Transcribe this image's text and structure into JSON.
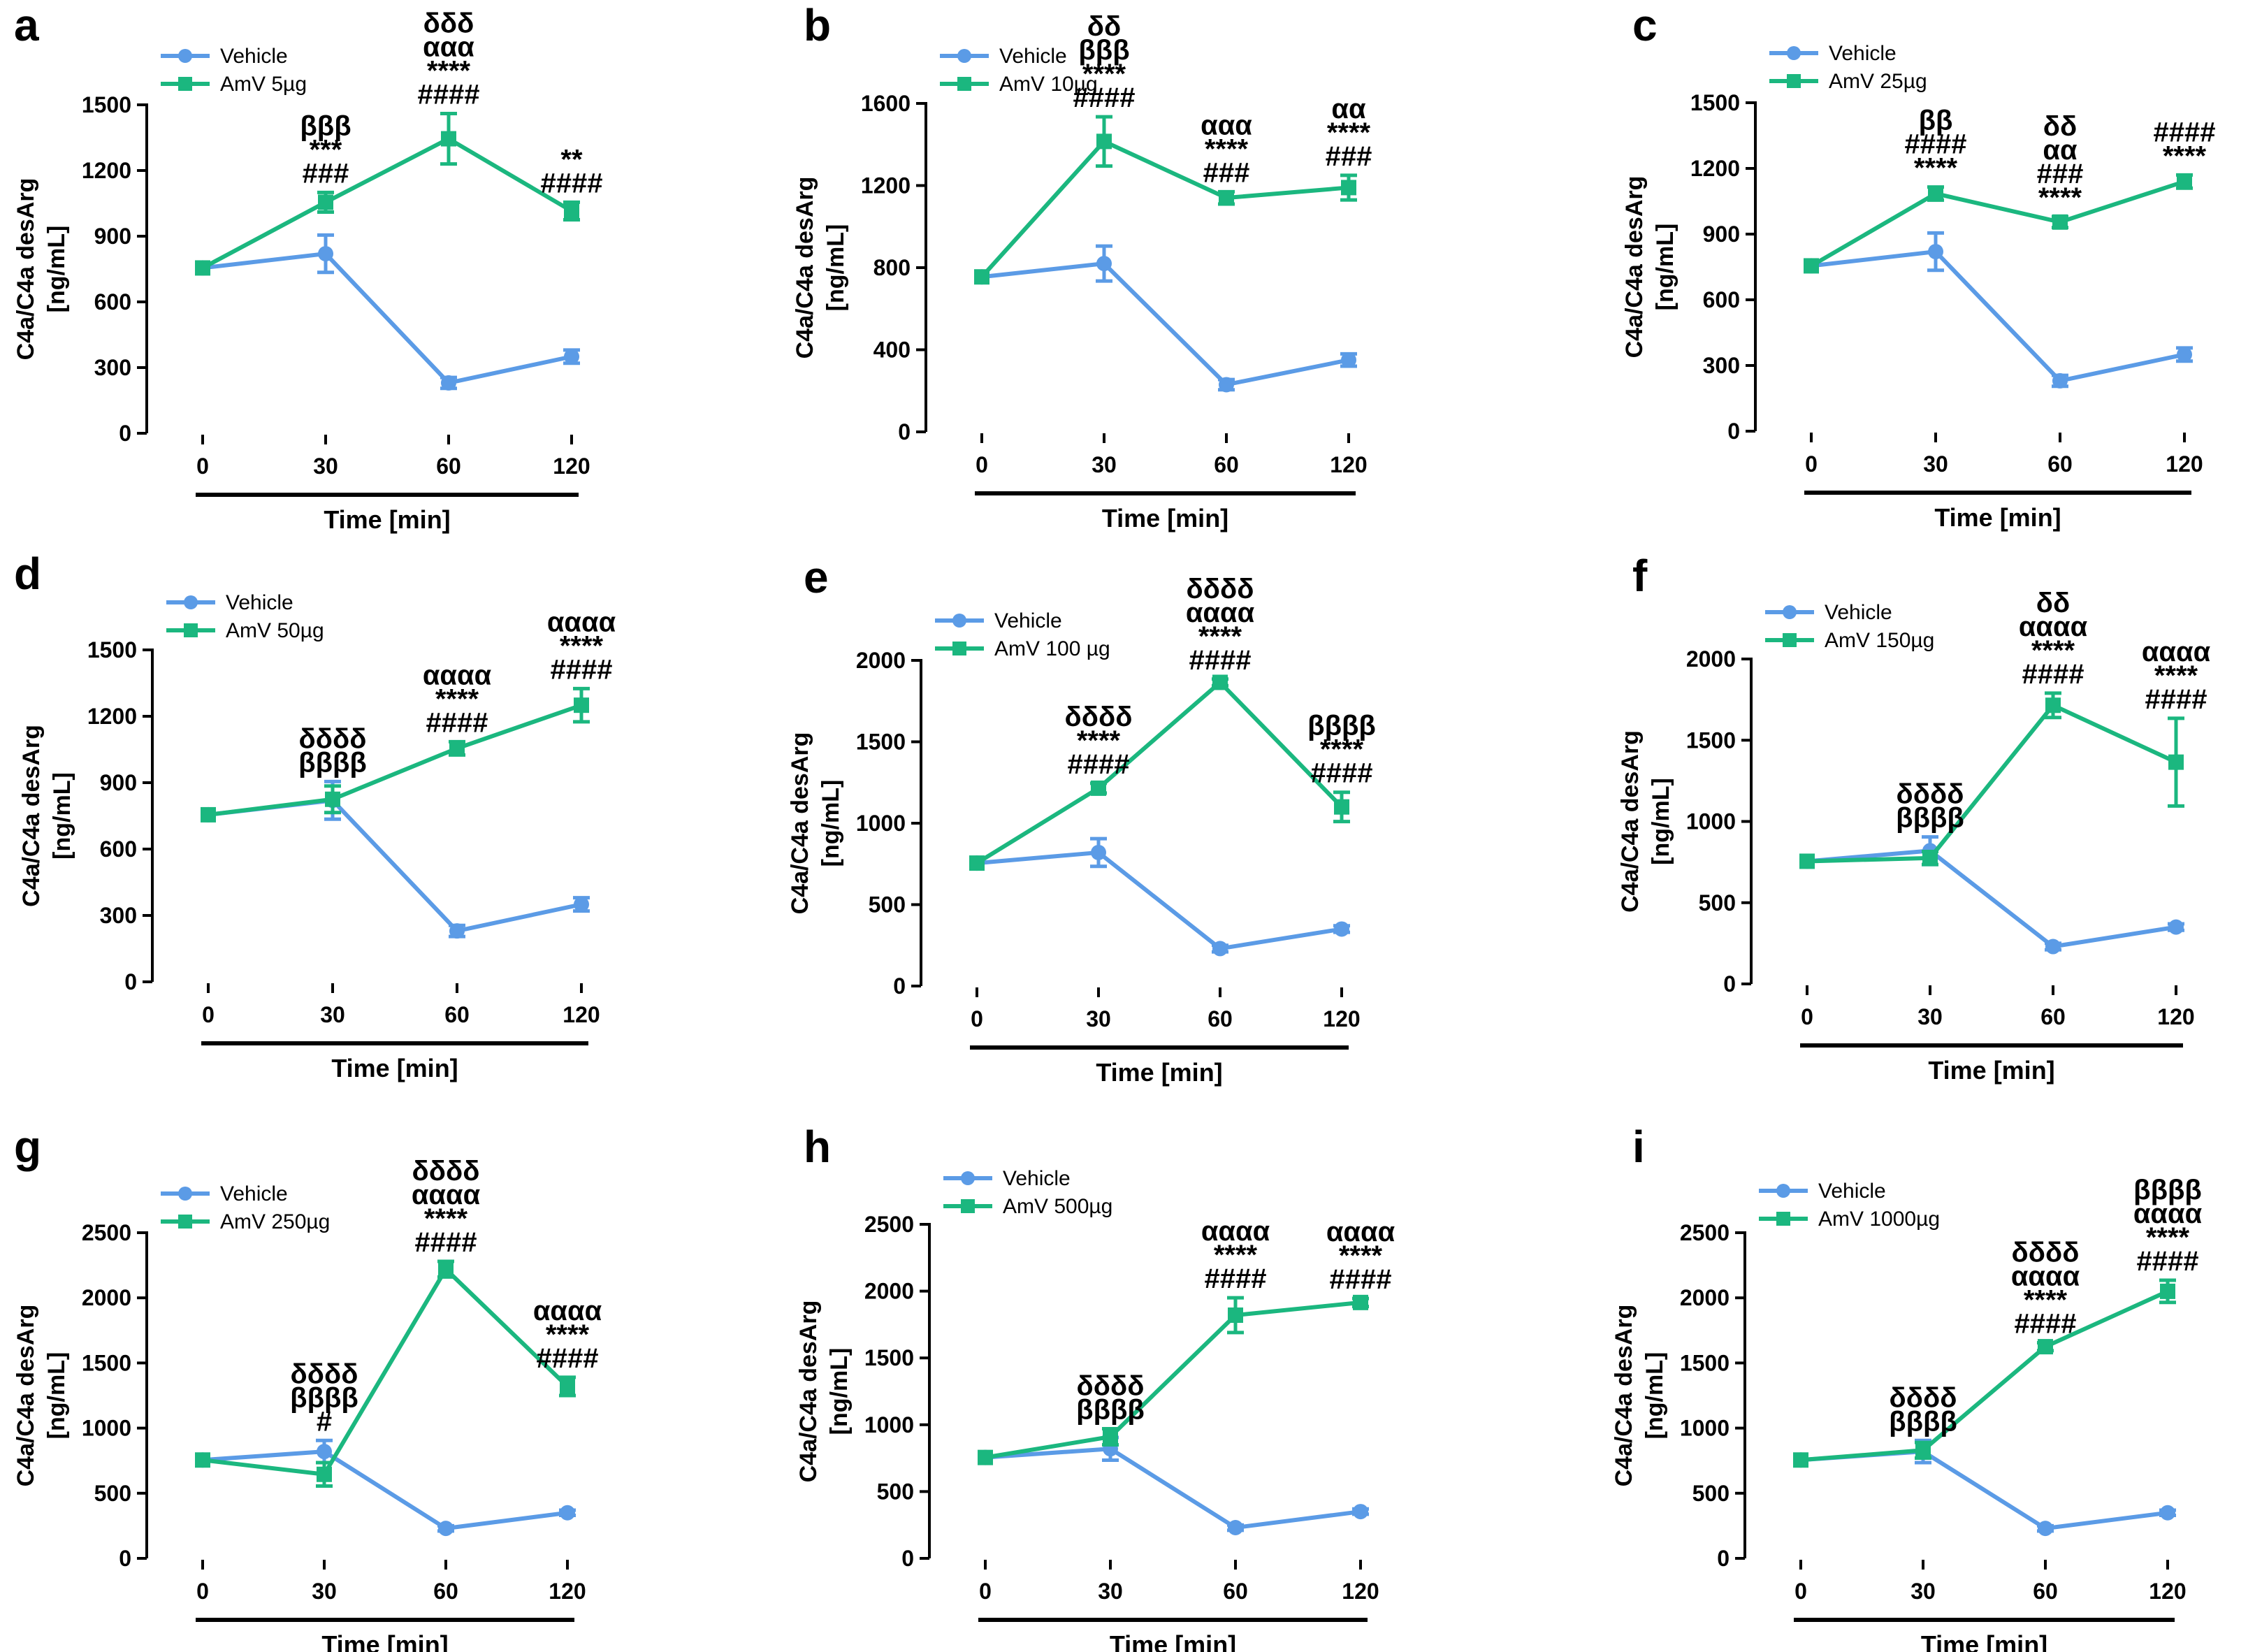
{
  "colors": {
    "vehicle": "#5B9BE6",
    "amv": "#1BB77F",
    "axis": "#000000"
  },
  "chart_data": [
    {
      "type": "line",
      "panel": "a",
      "xlabel": "Time [min]",
      "ylabel": [
        "C4a/C4a desArg",
        "[ng/mL]"
      ],
      "ylim": [
        0,
        1500
      ],
      "yticks": [
        0,
        300,
        600,
        900,
        1200,
        1500
      ],
      "x": [
        0,
        30,
        60,
        120
      ],
      "x_labels": [
        "0",
        "30",
        "60",
        "120"
      ],
      "series": [
        {
          "name": "Vehicle",
          "values": [
            755,
            820,
            230,
            350
          ],
          "err": [
            0,
            85,
            25,
            30
          ]
        },
        {
          "name": "AmV 5µg",
          "values": [
            755,
            1055,
            1345,
            1015
          ],
          "err": [
            0,
            45,
            115,
            40
          ]
        }
      ],
      "annotations": [
        {
          "x": 30,
          "lines": [
            "βββ",
            "***",
            "###"
          ]
        },
        {
          "x": 60,
          "lines": [
            "δδδ",
            "ααα",
            "****",
            "####"
          ]
        },
        {
          "x": 120,
          "lines": [
            "**",
            "####"
          ]
        }
      ]
    },
    {
      "type": "line",
      "panel": "b",
      "xlabel": "Time [min]",
      "ylabel": [
        "C4a/C4a desArg",
        "[ng/mL]"
      ],
      "ylim": [
        0,
        1600
      ],
      "yticks": [
        0,
        400,
        800,
        1200,
        1600
      ],
      "x": [
        0,
        30,
        60,
        120
      ],
      "x_labels": [
        "0",
        "30",
        "60",
        "120"
      ],
      "series": [
        {
          "name": "Vehicle",
          "values": [
            755,
            820,
            230,
            350
          ],
          "err": [
            0,
            85,
            25,
            30
          ]
        },
        {
          "name": "AmV 10µg",
          "values": [
            755,
            1415,
            1140,
            1190
          ],
          "err": [
            0,
            120,
            30,
            60
          ]
        }
      ],
      "annotations": [
        {
          "x": 30,
          "lines": [
            "δδ",
            "βββ",
            "****",
            "####"
          ]
        },
        {
          "x": 60,
          "lines": [
            "ααα",
            "****",
            "###"
          ]
        },
        {
          "x": 120,
          "lines": [
            "αα",
            "****",
            "###"
          ]
        }
      ]
    },
    {
      "type": "line",
      "panel": "c",
      "xlabel": "Time [min]",
      "ylabel": [
        "C4a/C4a desArg",
        "[ng/mL]"
      ],
      "ylim": [
        0,
        1500
      ],
      "yticks": [
        0,
        300,
        600,
        900,
        1200,
        1500
      ],
      "x": [
        0,
        30,
        60,
        120
      ],
      "x_labels": [
        "0",
        "30",
        "60",
        "120"
      ],
      "series": [
        {
          "name": "Vehicle",
          "values": [
            755,
            820,
            230,
            350
          ],
          "err": [
            0,
            85,
            25,
            30
          ]
        },
        {
          "name": "AmV 25µg",
          "values": [
            755,
            1085,
            955,
            1140
          ],
          "err": [
            0,
            30,
            25,
            30
          ]
        }
      ],
      "annotations": [
        {
          "x": 30,
          "lines": [
            "ββ",
            "####",
            "****"
          ]
        },
        {
          "x": 60,
          "lines": [
            "δδ",
            "αα",
            "###",
            "****"
          ]
        },
        {
          "x": 120,
          "lines": [
            "####",
            "****"
          ]
        }
      ]
    },
    {
      "type": "line",
      "panel": "d",
      "xlabel": "Time [min]",
      "ylabel": [
        "C4a/C4a desArg",
        "[ng/mL]"
      ],
      "ylim": [
        0,
        1500
      ],
      "yticks": [
        0,
        300,
        600,
        900,
        1200,
        1500
      ],
      "x": [
        0,
        30,
        60,
        120
      ],
      "x_labels": [
        "0",
        "30",
        "60",
        "120"
      ],
      "series": [
        {
          "name": "Vehicle",
          "values": [
            755,
            820,
            230,
            350
          ],
          "err": [
            0,
            85,
            25,
            30
          ]
        },
        {
          "name": "AmV 50µg",
          "values": [
            755,
            825,
            1055,
            1250
          ],
          "err": [
            0,
            60,
            30,
            75
          ]
        }
      ],
      "annotations": [
        {
          "x": 30,
          "lines": [
            "δδδδ",
            "ββββ"
          ]
        },
        {
          "x": 60,
          "lines": [
            "αααα",
            "****",
            "####"
          ]
        },
        {
          "x": 120,
          "lines": [
            "αααα",
            "****",
            "####"
          ]
        }
      ]
    },
    {
      "type": "line",
      "panel": "e",
      "xlabel": "Time [min]",
      "ylabel": [
        "C4a/C4a desArg",
        "[ng/mL]"
      ],
      "ylim": [
        0,
        2000
      ],
      "yticks": [
        0,
        500,
        1000,
        1500,
        2000
      ],
      "x": [
        0,
        30,
        60,
        120
      ],
      "x_labels": [
        "0",
        "30",
        "60",
        "120"
      ],
      "series": [
        {
          "name": "Vehicle",
          "values": [
            755,
            820,
            230,
            350
          ],
          "err": [
            0,
            85,
            20,
            20
          ]
        },
        {
          "name": "AmV 100 µg",
          "values": [
            755,
            1215,
            1865,
            1100
          ],
          "err": [
            0,
            30,
            20,
            90
          ]
        }
      ],
      "annotations": [
        {
          "x": 30,
          "lines": [
            "δδδδ",
            "****",
            "####"
          ]
        },
        {
          "x": 60,
          "lines": [
            "δδδδ",
            "αααα",
            "****",
            "####"
          ]
        },
        {
          "x": 120,
          "lines": [
            "ββββ",
            "****",
            "####"
          ]
        }
      ]
    },
    {
      "type": "line",
      "panel": "f",
      "xlabel": "Time [min]",
      "ylabel": [
        "C4a/C4a desArg",
        "[ng/mL]"
      ],
      "ylim": [
        0,
        2000
      ],
      "yticks": [
        0,
        500,
        1000,
        1500,
        2000
      ],
      "x": [
        0,
        30,
        60,
        120
      ],
      "x_labels": [
        "0",
        "30",
        "60",
        "120"
      ],
      "series": [
        {
          "name": "Vehicle",
          "values": [
            755,
            820,
            230,
            350
          ],
          "err": [
            0,
            85,
            20,
            20
          ]
        },
        {
          "name": "AmV 150µg",
          "values": [
            755,
            775,
            1715,
            1365
          ],
          "err": [
            0,
            40,
            75,
            270
          ]
        }
      ],
      "annotations": [
        {
          "x": 30,
          "lines": [
            "δδδδ",
            "ββββ"
          ]
        },
        {
          "x": 60,
          "lines": [
            "δδ",
            "αααα",
            "****",
            "####"
          ]
        },
        {
          "x": 120,
          "lines": [
            "αααα",
            "****",
            "####"
          ]
        }
      ]
    },
    {
      "type": "line",
      "panel": "g",
      "xlabel": "Time [min]",
      "ylabel": [
        "C4a/C4a desArg",
        "[ng/mL]"
      ],
      "ylim": [
        0,
        2500
      ],
      "yticks": [
        0,
        500,
        1000,
        1500,
        2000,
        2500
      ],
      "x": [
        0,
        30,
        60,
        120
      ],
      "x_labels": [
        "0",
        "30",
        "60",
        "120"
      ],
      "series": [
        {
          "name": "Vehicle",
          "values": [
            755,
            820,
            230,
            350
          ],
          "err": [
            0,
            85,
            20,
            20
          ]
        },
        {
          "name": "AmV 250µg",
          "values": [
            755,
            645,
            2220,
            1320
          ],
          "err": [
            0,
            90,
            60,
            70
          ]
        }
      ],
      "annotations": [
        {
          "x": 30,
          "lines": [
            "δδδδ",
            "ββββ",
            "#"
          ]
        },
        {
          "x": 60,
          "lines": [
            "δδδδ",
            "αααα",
            "****",
            "####"
          ]
        },
        {
          "x": 120,
          "lines": [
            "αααα",
            "****",
            "####"
          ]
        }
      ]
    },
    {
      "type": "line",
      "panel": "h",
      "xlabel": "Time [min]",
      "ylabel": [
        "C4a/C4a desArg",
        "[ng/mL]"
      ],
      "ylim": [
        0,
        2500
      ],
      "yticks": [
        0,
        500,
        1000,
        1500,
        2000,
        2500
      ],
      "x": [
        0,
        30,
        60,
        120
      ],
      "x_labels": [
        "0",
        "30",
        "60",
        "120"
      ],
      "series": [
        {
          "name": "Vehicle",
          "values": [
            755,
            820,
            230,
            350
          ],
          "err": [
            0,
            85,
            20,
            20
          ]
        },
        {
          "name": "AmV 500µg",
          "values": [
            755,
            910,
            1820,
            1915
          ],
          "err": [
            0,
            60,
            130,
            30
          ]
        }
      ],
      "annotations": [
        {
          "x": 30,
          "lines": [
            "δδδδ",
            "ββββ"
          ]
        },
        {
          "x": 60,
          "lines": [
            "αααα",
            "****",
            "####"
          ]
        },
        {
          "x": 120,
          "lines": [
            "αααα",
            "****",
            "####"
          ]
        }
      ]
    },
    {
      "type": "line",
      "panel": "i",
      "xlabel": "Time [min]",
      "ylabel": [
        "C4a/C4a desArg",
        "[ng/mL]"
      ],
      "ylim": [
        0,
        2500
      ],
      "yticks": [
        0,
        500,
        1000,
        1500,
        2000,
        2500
      ],
      "x": [
        0,
        30,
        60,
        120
      ],
      "x_labels": [
        "0",
        "30",
        "60",
        "120"
      ],
      "series": [
        {
          "name": "Vehicle",
          "values": [
            755,
            820,
            230,
            350
          ],
          "err": [
            0,
            85,
            20,
            20
          ]
        },
        {
          "name": "AmV 1000µg",
          "values": [
            755,
            830,
            1625,
            2050
          ],
          "err": [
            0,
            60,
            30,
            85
          ]
        }
      ],
      "annotations": [
        {
          "x": 30,
          "lines": [
            "δδδδ",
            "ββββ"
          ]
        },
        {
          "x": 60,
          "lines": [
            "δδδδ",
            "αααα",
            "****",
            "####"
          ]
        },
        {
          "x": 120,
          "lines": [
            "ββββ",
            "αααα",
            "****",
            "####"
          ]
        }
      ]
    }
  ]
}
